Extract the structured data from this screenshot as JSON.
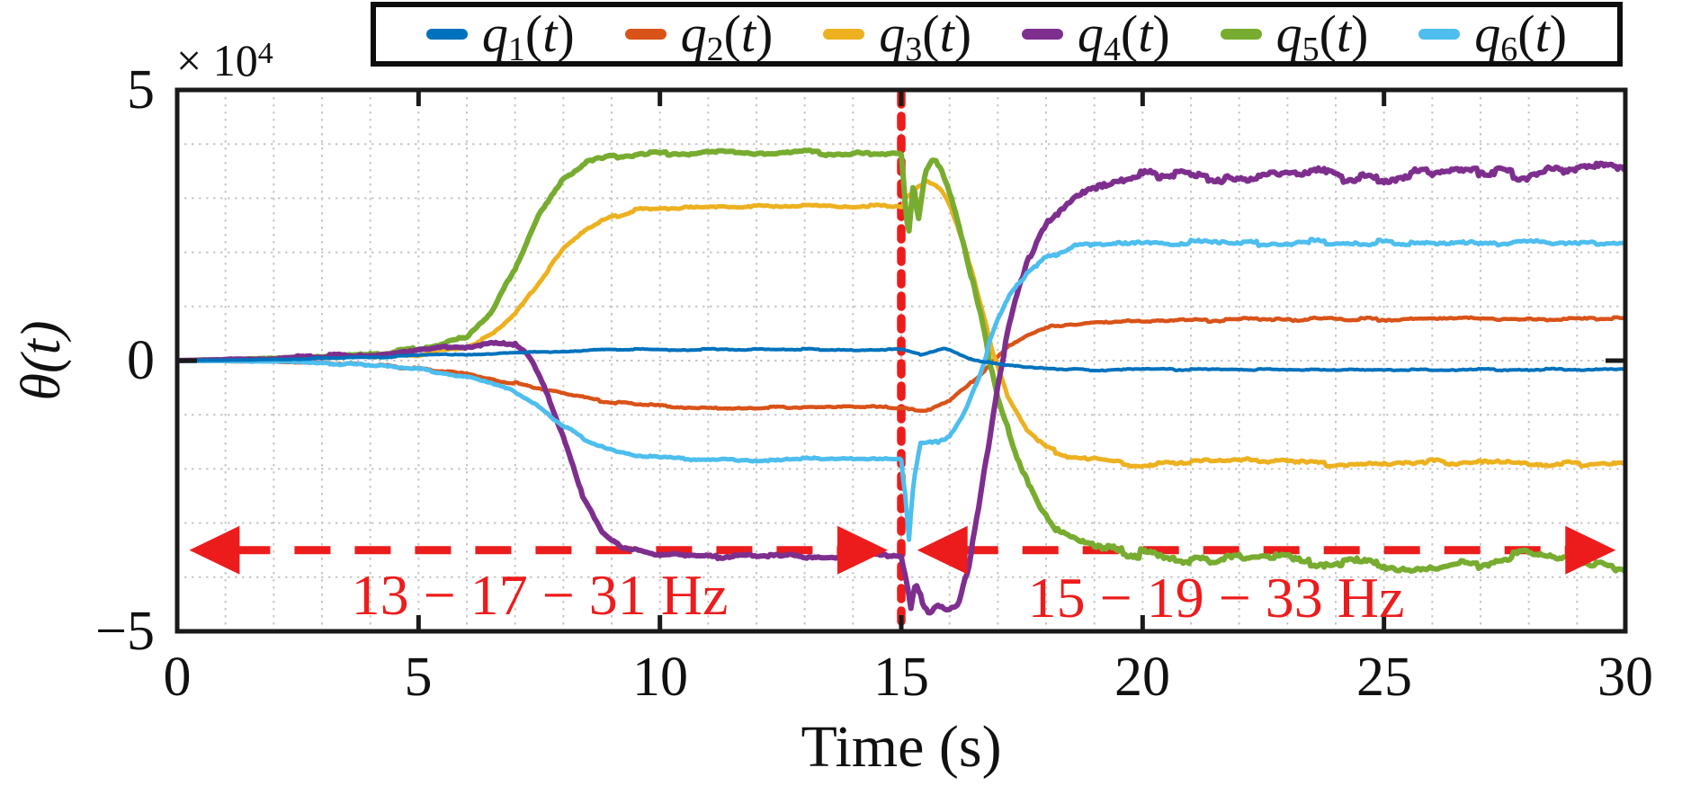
{
  "figure": {
    "y_axis": {
      "label": "θ(t)",
      "exp_base": "× 10",
      "exp_sup": "4",
      "ticks": [
        "5",
        "0",
        "−5"
      ]
    },
    "x_axis": {
      "label": "Time (s)",
      "ticks": [
        "0",
        "5",
        "10",
        "15",
        "20",
        "25",
        "30"
      ]
    }
  },
  "legend": {
    "entries": [
      {
        "base": "q",
        "sub": "1",
        "paren": "(t)",
        "color": "#0072BD"
      },
      {
        "base": "q",
        "sub": "2",
        "paren": "(t)",
        "color": "#D95319"
      },
      {
        "base": "q",
        "sub": "3",
        "paren": "(t)",
        "color": "#EDB120"
      },
      {
        "base": "q",
        "sub": "4",
        "paren": "(t)",
        "color": "#7E2F8E"
      },
      {
        "base": "q",
        "sub": "5",
        "paren": "(t)",
        "color": "#77AC30"
      },
      {
        "base": "q",
        "sub": "6",
        "paren": "(t)",
        "color": "#4DBEEE"
      }
    ]
  },
  "chart_data": {
    "type": "line",
    "title": "",
    "xlabel": "Time (s)",
    "ylabel": "θ(t)",
    "x_range": [
      0,
      30
    ],
    "y_range": [
      -50000,
      50000
    ],
    "y_unit": "values below are in units of 1e4",
    "grid": "dotted gray, 1 s horizontal spacing, 1e4 vertical spacing",
    "legend_position": "top",
    "x_ticks": [
      0,
      5,
      10,
      15,
      20,
      25,
      30
    ],
    "y_ticks_labeled": [
      -50000,
      0,
      50000
    ],
    "series": [
      {
        "name": "q1(t)",
        "color": "#0072BD",
        "width": 4,
        "noise_before": 0.02,
        "noise_after": 0.025,
        "points": [
          [
            0,
            0
          ],
          [
            2,
            0.02
          ],
          [
            4,
            0.06
          ],
          [
            6,
            0.12
          ],
          [
            8,
            0.17
          ],
          [
            9,
            0.2
          ],
          [
            12,
            0.21
          ],
          [
            15,
            0.2
          ],
          [
            15.4,
            0.12
          ],
          [
            15.9,
            0.24
          ],
          [
            16.4,
            0.05
          ],
          [
            17,
            -0.08
          ],
          [
            18,
            -0.14
          ],
          [
            19,
            -0.17
          ],
          [
            30,
            -0.16
          ]
        ]
      },
      {
        "name": "q2(t)",
        "color": "#D95319",
        "width": 4.5,
        "noise_before": 0.03,
        "noise_after": 0.04,
        "points": [
          [
            0,
            0
          ],
          [
            2,
            -0.02
          ],
          [
            4,
            -0.08
          ],
          [
            5,
            -0.14
          ],
          [
            6,
            -0.25
          ],
          [
            7,
            -0.42
          ],
          [
            8,
            -0.62
          ],
          [
            9,
            -0.78
          ],
          [
            10,
            -0.84
          ],
          [
            11,
            -0.87
          ],
          [
            15,
            -0.86
          ],
          [
            15.5,
            -0.93
          ],
          [
            16,
            -0.76
          ],
          [
            16.4,
            -0.46
          ],
          [
            16.8,
            -0.1
          ],
          [
            17.2,
            0.25
          ],
          [
            17.7,
            0.5
          ],
          [
            18.2,
            0.65
          ],
          [
            19,
            0.72
          ],
          [
            20,
            0.75
          ],
          [
            25,
            0.76
          ],
          [
            30,
            0.78
          ]
        ]
      },
      {
        "name": "q3(t)",
        "color": "#EDB120",
        "width": 5,
        "noise_before": 0.04,
        "noise_after": 0.07,
        "points": [
          [
            0,
            0
          ],
          [
            2,
            0.02
          ],
          [
            4,
            0.07
          ],
          [
            5,
            0.12
          ],
          [
            6,
            0.25
          ],
          [
            6.5,
            0.45
          ],
          [
            7,
            0.85
          ],
          [
            7.5,
            1.45
          ],
          [
            8,
            2.05
          ],
          [
            8.5,
            2.45
          ],
          [
            9,
            2.65
          ],
          [
            9.5,
            2.78
          ],
          [
            10,
            2.82
          ],
          [
            12,
            2.87
          ],
          [
            15,
            2.85
          ],
          [
            15.2,
            3.05
          ],
          [
            15.5,
            3.28
          ],
          [
            15.8,
            3.15
          ],
          [
            16,
            2.85
          ],
          [
            16.3,
            2.1
          ],
          [
            16.6,
            1.15
          ],
          [
            16.9,
            0.2
          ],
          [
            17.2,
            -0.6
          ],
          [
            17.6,
            -1.25
          ],
          [
            18,
            -1.6
          ],
          [
            18.5,
            -1.78
          ],
          [
            19,
            -1.85
          ],
          [
            20,
            -1.92
          ],
          [
            22,
            -1.86
          ],
          [
            24,
            -1.9
          ],
          [
            26,
            -1.86
          ],
          [
            28,
            -1.92
          ],
          [
            30,
            -1.9
          ]
        ]
      },
      {
        "name": "q4(t)",
        "color": "#7E2F8E",
        "width": 6,
        "noise_before": 0.05,
        "noise_after": 0.13,
        "points": [
          [
            0,
            0
          ],
          [
            2,
            0.04
          ],
          [
            4,
            0.12
          ],
          [
            5,
            0.2
          ],
          [
            6,
            0.28
          ],
          [
            6.6,
            0.33
          ],
          [
            7,
            0.28
          ],
          [
            7.3,
            0.05
          ],
          [
            7.6,
            -0.5
          ],
          [
            8,
            -1.4
          ],
          [
            8.4,
            -2.5
          ],
          [
            8.8,
            -3.15
          ],
          [
            9.2,
            -3.45
          ],
          [
            9.6,
            -3.55
          ],
          [
            10,
            -3.6
          ],
          [
            11,
            -3.62
          ],
          [
            12,
            -3.58
          ],
          [
            13,
            -3.63
          ],
          [
            14,
            -3.6
          ],
          [
            15,
            -3.58
          ],
          [
            15.1,
            -3.95
          ],
          [
            15.2,
            -4.5
          ],
          [
            15.3,
            -4.0
          ],
          [
            15.45,
            -4.6
          ],
          [
            15.6,
            -4.7
          ],
          [
            15.8,
            -4.55
          ],
          [
            16,
            -4.65
          ],
          [
            16.2,
            -4.45
          ],
          [
            16.4,
            -3.8
          ],
          [
            16.6,
            -2.8
          ],
          [
            16.8,
            -1.6
          ],
          [
            17,
            -0.45
          ],
          [
            17.3,
            0.85
          ],
          [
            17.6,
            1.8
          ],
          [
            18,
            2.5
          ],
          [
            18.5,
            2.95
          ],
          [
            19,
            3.2
          ],
          [
            19.5,
            3.32
          ],
          [
            20,
            3.4
          ],
          [
            21,
            3.45
          ],
          [
            22,
            3.35
          ],
          [
            23,
            3.5
          ],
          [
            24,
            3.42
          ],
          [
            25,
            3.38
          ],
          [
            26,
            3.45
          ],
          [
            27,
            3.52
          ],
          [
            28,
            3.42
          ],
          [
            29,
            3.55
          ],
          [
            30,
            3.5
          ]
        ]
      },
      {
        "name": "q5(t)",
        "color": "#77AC30",
        "width": 6,
        "noise_before": 0.05,
        "noise_after": 0.13,
        "points": [
          [
            0,
            0
          ],
          [
            2,
            0.03
          ],
          [
            4,
            0.1
          ],
          [
            5,
            0.22
          ],
          [
            6,
            0.45
          ],
          [
            6.5,
            0.9
          ],
          [
            7,
            1.7
          ],
          [
            7.5,
            2.7
          ],
          [
            8,
            3.35
          ],
          [
            8.5,
            3.65
          ],
          [
            9,
            3.78
          ],
          [
            10,
            3.82
          ],
          [
            11,
            3.86
          ],
          [
            12,
            3.8
          ],
          [
            13,
            3.85
          ],
          [
            14,
            3.82
          ],
          [
            15,
            3.8
          ],
          [
            15.07,
            3.1
          ],
          [
            15.15,
            2.35
          ],
          [
            15.25,
            3.4
          ],
          [
            15.35,
            2.6
          ],
          [
            15.5,
            3.5
          ],
          [
            15.7,
            3.75
          ],
          [
            15.9,
            3.45
          ],
          [
            16.1,
            2.85
          ],
          [
            16.4,
            1.75
          ],
          [
            16.7,
            0.6
          ],
          [
            17,
            -0.6
          ],
          [
            17.4,
            -1.75
          ],
          [
            17.8,
            -2.55
          ],
          [
            18.2,
            -3.05
          ],
          [
            18.7,
            -3.35
          ],
          [
            19.2,
            -3.5
          ],
          [
            20,
            -3.6
          ],
          [
            21,
            -3.7
          ],
          [
            22,
            -3.62
          ],
          [
            23,
            -3.68
          ],
          [
            24,
            -3.72
          ],
          [
            25,
            -3.78
          ],
          [
            26,
            -3.82
          ],
          [
            27,
            -3.7
          ],
          [
            28,
            -3.58
          ],
          [
            29,
            -3.72
          ],
          [
            30,
            -3.85
          ]
        ]
      },
      {
        "name": "q6(t)",
        "color": "#4DBEEE",
        "width": 5,
        "noise_before": 0.035,
        "noise_after": 0.07,
        "points": [
          [
            0,
            0
          ],
          [
            2,
            -0.02
          ],
          [
            4,
            -0.08
          ],
          [
            5,
            -0.15
          ],
          [
            6,
            -0.3
          ],
          [
            6.5,
            -0.42
          ],
          [
            7,
            -0.58
          ],
          [
            7.5,
            -0.85
          ],
          [
            8,
            -1.2
          ],
          [
            8.5,
            -1.5
          ],
          [
            9,
            -1.65
          ],
          [
            9.5,
            -1.75
          ],
          [
            10,
            -1.8
          ],
          [
            12,
            -1.83
          ],
          [
            15,
            -1.8
          ],
          [
            15.08,
            -2.5
          ],
          [
            15.16,
            -3.35
          ],
          [
            15.25,
            -2.3
          ],
          [
            15.4,
            -1.55
          ],
          [
            15.7,
            -1.5
          ],
          [
            16,
            -1.38
          ],
          [
            16.3,
            -0.95
          ],
          [
            16.6,
            -0.3
          ],
          [
            16.9,
            0.5
          ],
          [
            17.2,
            1.15
          ],
          [
            17.6,
            1.65
          ],
          [
            18,
            1.92
          ],
          [
            18.5,
            2.08
          ],
          [
            19,
            2.15
          ],
          [
            20,
            2.2
          ],
          [
            22,
            2.16
          ],
          [
            24,
            2.2
          ],
          [
            26,
            2.12
          ],
          [
            28,
            2.18
          ],
          [
            30,
            2.2
          ]
        ]
      }
    ],
    "draw_order": [
      1,
      2,
      4,
      3,
      5,
      0
    ],
    "annotations": {
      "event_vline": {
        "t": 15,
        "color": "#ed1c1c",
        "style": "dotted"
      },
      "span_arrows": [
        {
          "t1": 0.25,
          "t2": 14.72,
          "v": -3.5,
          "color": "#ed1c1c",
          "style": "dashed-double-arrow"
        },
        {
          "t1": 15.33,
          "t2": 29.8,
          "v": -3.5,
          "color": "#ed1c1c",
          "style": "dashed-double-arrow"
        }
      ],
      "labels": [
        {
          "text": "13 − 17 − 31 Hz",
          "t": 7.5,
          "v": -4.33
        },
        {
          "text": "15 − 19 − 33 Hz",
          "t": 21.5,
          "v": -4.39
        }
      ]
    }
  }
}
